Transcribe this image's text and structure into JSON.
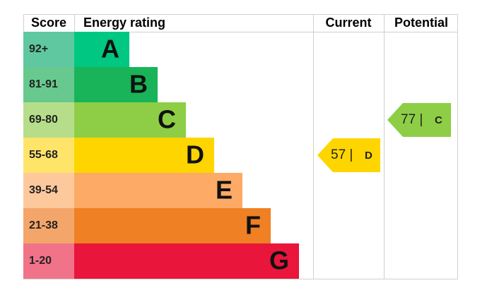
{
  "header": {
    "score": "Score",
    "rating": "Energy rating",
    "current": "Current",
    "potential": "Potential"
  },
  "rows": [
    {
      "score": "92+",
      "band": "A",
      "color": "#00c781",
      "score_color": "#5fc8a0"
    },
    {
      "score": "81-91",
      "band": "B",
      "color": "#19b459",
      "score_color": "#68c98e"
    },
    {
      "score": "69-80",
      "band": "C",
      "color": "#8dce46",
      "score_color": "#b6de8a"
    },
    {
      "score": "55-68",
      "band": "D",
      "color": "#ffd500",
      "score_color": "#ffe46a"
    },
    {
      "score": "39-54",
      "band": "E",
      "color": "#fcaa65",
      "score_color": "#fdc99c"
    },
    {
      "score": "21-38",
      "band": "F",
      "color": "#ef8023",
      "score_color": "#f4a66a"
    },
    {
      "score": "1-20",
      "band": "G",
      "color": "#e9153b",
      "score_color": "#f17389"
    }
  ],
  "current": {
    "label": "57 |",
    "band": "D",
    "row": 3
  },
  "potential": {
    "label": "77 |",
    "band": "C",
    "row": 2
  }
}
